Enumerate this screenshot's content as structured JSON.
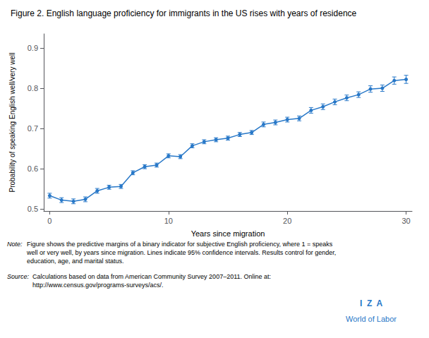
{
  "chart_data": {
    "type": "line",
    "title": "Figure 2. English language proficiency for immigrants in the US rises with years of residence",
    "xlabel": "Years since migration",
    "ylabel": "Probability of speaking English well/very well",
    "x": [
      0,
      1,
      2,
      3,
      4,
      5,
      6,
      7,
      8,
      9,
      10,
      11,
      12,
      13,
      14,
      15,
      16,
      17,
      18,
      19,
      20,
      21,
      22,
      23,
      24,
      25,
      26,
      27,
      28,
      29,
      30
    ],
    "values": [
      0.533,
      0.522,
      0.519,
      0.524,
      0.545,
      0.554,
      0.556,
      0.59,
      0.605,
      0.609,
      0.632,
      0.63,
      0.657,
      0.667,
      0.672,
      0.676,
      0.685,
      0.69,
      0.71,
      0.715,
      0.722,
      0.725,
      0.745,
      0.754,
      0.766,
      0.776,
      0.784,
      0.798,
      0.8,
      0.819,
      0.822
    ],
    "error": [
      0.006,
      0.006,
      0.006,
      0.006,
      0.006,
      0.005,
      0.005,
      0.005,
      0.005,
      0.005,
      0.005,
      0.005,
      0.005,
      0.005,
      0.005,
      0.005,
      0.005,
      0.005,
      0.006,
      0.006,
      0.006,
      0.006,
      0.007,
      0.007,
      0.007,
      0.007,
      0.007,
      0.008,
      0.008,
      0.009,
      0.01
    ],
    "color": "#2878C8",
    "marker": "circle",
    "xlim": [
      -0.5,
      30.5
    ],
    "ylim": [
      0.495,
      0.935
    ],
    "xticks": [
      0,
      10,
      20,
      30
    ],
    "yticks": [
      0.5,
      0.6,
      0.7,
      0.8,
      0.9
    ],
    "grid": false,
    "annotations": [
      {
        "label": "Note:",
        "text": "Figure shows the predictive margins of a binary indicator for subjective English proficiency, where 1 = speaks\nwell or very well, by years since migration. Lines indicate 95% confidence intervals. Results control for gender,\neducation, age, and marital status."
      },
      {
        "label": "Source:",
        "text": "Calculations based on data from American Community Survey 2007–2011. Online at:\nhttp://www.census.gov/programs-surveys/acs/."
      },
      {
        "text": "I  Z  A"
      },
      {
        "text": "World of Labor"
      }
    ]
  }
}
